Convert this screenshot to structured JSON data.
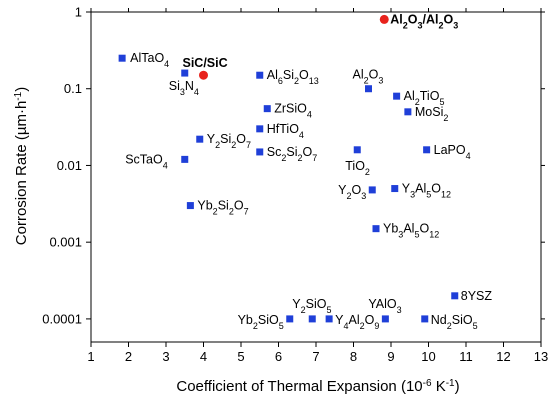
{
  "chart_data": {
    "type": "scatter",
    "xlabel": "Coefficient of Thermal Expansion (10^-6 K^-1)",
    "ylabel": "Corrosion Rate (µm·h^-1)",
    "xlim": [
      1,
      13
    ],
    "ylim": [
      5e-05,
      1
    ],
    "y_scale": "log",
    "x_ticks": [
      1,
      2,
      3,
      4,
      5,
      6,
      7,
      8,
      9,
      10,
      11,
      12,
      13
    ],
    "y_ticks": [
      {
        "value": 0.0001,
        "label": "0.0001"
      },
      {
        "value": 0.001,
        "label": "0.001"
      },
      {
        "value": 0.01,
        "label": "0.01"
      },
      {
        "value": 0.1,
        "label": "0.1"
      },
      {
        "value": 1,
        "label": "1"
      }
    ],
    "grid": false,
    "colors": {
      "square_marker": "#1f3fd8",
      "circle_marker": "#e8221c"
    },
    "points": [
      {
        "label": "AlTaO4",
        "html": "AlTaO<tspan baseline-shift='sub' font-size='9'>4</tspan>",
        "x": 1.83,
        "y": 0.25,
        "marker": "square",
        "lx": 8,
        "ly": 4,
        "anchor": "start"
      },
      {
        "label": "Si3N4",
        "html": "Si<tspan baseline-shift='sub' font-size='9'>3</tspan>N<tspan baseline-shift='sub' font-size='9'>4</tspan>",
        "x": 3.5,
        "y": 0.16,
        "marker": "square",
        "lx": -16,
        "ly": 17,
        "anchor": "start"
      },
      {
        "label": "SiC/SiC",
        "html": "SiC/SiC",
        "x": 4.0,
        "y": 0.15,
        "marker": "circle",
        "lx": -21,
        "ly": -8,
        "anchor": "start",
        "bold": true
      },
      {
        "label": "Al2O3/Al2O3",
        "html": "Al<tspan baseline-shift='sub' font-size='9'>2</tspan>O<tspan baseline-shift='sub' font-size='9'>3</tspan>/Al<tspan baseline-shift='sub' font-size='9'>2</tspan>O<tspan baseline-shift='sub' font-size='9'>3</tspan>",
        "x": 8.82,
        "y": 0.8,
        "marker": "circle",
        "lx": 6,
        "ly": 4,
        "anchor": "start",
        "bold": true
      },
      {
        "label": "Al6Si2O13",
        "html": "Al<tspan baseline-shift='sub' font-size='9'>6</tspan>Si<tspan baseline-shift='sub' font-size='9'>2</tspan>O<tspan baseline-shift='sub' font-size='9'>13</tspan>",
        "x": 5.5,
        "y": 0.15,
        "marker": "square",
        "lx": 7,
        "ly": 4,
        "anchor": "start"
      },
      {
        "label": "Al2O3",
        "html": "Al<tspan baseline-shift='sub' font-size='9'>2</tspan>O<tspan baseline-shift='sub' font-size='9'>3</tspan>",
        "x": 8.4,
        "y": 0.1,
        "marker": "square",
        "lx": -16,
        "ly": -10,
        "anchor": "start"
      },
      {
        "label": "Al2TiO5",
        "html": "Al<tspan baseline-shift='sub' font-size='9'>2</tspan>TiO<tspan baseline-shift='sub' font-size='9'>5</tspan>",
        "x": 9.15,
        "y": 0.08,
        "marker": "square",
        "lx": 7,
        "ly": 4,
        "anchor": "start"
      },
      {
        "label": "ZrSiO4",
        "html": "ZrSiO<tspan baseline-shift='sub' font-size='9'>4</tspan>",
        "x": 5.7,
        "y": 0.055,
        "marker": "square",
        "lx": 7,
        "ly": 4,
        "anchor": "start"
      },
      {
        "label": "MoSi2",
        "html": "MoSi<tspan baseline-shift='sub' font-size='9'>2</tspan>",
        "x": 9.45,
        "y": 0.05,
        "marker": "square",
        "lx": 7,
        "ly": 4,
        "anchor": "start"
      },
      {
        "label": "HfTiO4",
        "html": "HfTiO<tspan baseline-shift='sub' font-size='9'>4</tspan>",
        "x": 5.5,
        "y": 0.03,
        "marker": "square",
        "lx": 7,
        "ly": 4,
        "anchor": "start"
      },
      {
        "label": "Y2Si2O7",
        "html": "Y<tspan baseline-shift='sub' font-size='9'>2</tspan>Si<tspan baseline-shift='sub' font-size='9'>2</tspan>O<tspan baseline-shift='sub' font-size='9'>7</tspan>",
        "x": 3.9,
        "y": 0.022,
        "marker": "square",
        "lx": 7,
        "ly": 4,
        "anchor": "start"
      },
      {
        "label": "Sc2Si2O7",
        "html": "Sc<tspan baseline-shift='sub' font-size='9'>2</tspan>Si<tspan baseline-shift='sub' font-size='9'>2</tspan>O<tspan baseline-shift='sub' font-size='9'>7</tspan>",
        "x": 5.5,
        "y": 0.015,
        "marker": "square",
        "lx": 7,
        "ly": 4,
        "anchor": "start"
      },
      {
        "label": "TiO2",
        "html": "TiO<tspan baseline-shift='sub' font-size='9'>2</tspan>",
        "x": 8.1,
        "y": 0.016,
        "marker": "square",
        "lx": -12,
        "ly": 20,
        "anchor": "start"
      },
      {
        "label": "LaPO4",
        "html": "LaPO<tspan baseline-shift='sub' font-size='9'>4</tspan>",
        "x": 9.95,
        "y": 0.016,
        "marker": "square",
        "lx": 7,
        "ly": 4,
        "anchor": "start"
      },
      {
        "label": "ScTaO4",
        "html": "ScTaO<tspan baseline-shift='sub' font-size='9'>4</tspan>",
        "x": 3.5,
        "y": 0.012,
        "marker": "square",
        "lx": -17,
        "ly": 4,
        "anchor": "end"
      },
      {
        "label": "Y2O3",
        "html": "Y<tspan baseline-shift='sub' font-size='9'>2</tspan>O<tspan baseline-shift='sub' font-size='9'>3</tspan>",
        "x": 8.5,
        "y": 0.0048,
        "marker": "square",
        "lx": -6,
        "ly": 4,
        "anchor": "end"
      },
      {
        "label": "Y3Al5O12",
        "html": "Y<tspan baseline-shift='sub' font-size='9'>3</tspan>Al<tspan baseline-shift='sub' font-size='9'>5</tspan>O<tspan baseline-shift='sub' font-size='9'>12</tspan>",
        "x": 9.1,
        "y": 0.005,
        "marker": "square",
        "lx": 7,
        "ly": 4,
        "anchor": "start"
      },
      {
        "label": "Yb2Si2O7",
        "html": "Yb<tspan baseline-shift='sub' font-size='9'>2</tspan>Si<tspan baseline-shift='sub' font-size='9'>2</tspan>O<tspan baseline-shift='sub' font-size='9'>7</tspan>",
        "x": 3.65,
        "y": 0.003,
        "marker": "square",
        "lx": 7,
        "ly": 4,
        "anchor": "start"
      },
      {
        "label": "Yb3Al5O12",
        "html": "Yb<tspan baseline-shift='sub' font-size='9'>3</tspan>Al<tspan baseline-shift='sub' font-size='9'>5</tspan>O<tspan baseline-shift='sub' font-size='9'>12</tspan>",
        "x": 8.6,
        "y": 0.0015,
        "marker": "square",
        "lx": 7,
        "ly": 4,
        "anchor": "start"
      },
      {
        "label": "8YSZ",
        "html": "8YSZ",
        "x": 10.7,
        "y": 0.0002,
        "marker": "square",
        "lx": 6,
        "ly": 4,
        "anchor": "start"
      },
      {
        "label": "Yb2SiO5",
        "html": "Yb<tspan baseline-shift='sub' font-size='9'>2</tspan>SiO<tspan baseline-shift='sub' font-size='9'>5</tspan>",
        "x": 6.3,
        "y": 0.0001,
        "marker": "square",
        "lx": -6,
        "ly": 5,
        "anchor": "end"
      },
      {
        "label": "Y2SiO5",
        "html": "Y<tspan baseline-shift='sub' font-size='9'>2</tspan>SiO<tspan baseline-shift='sub' font-size='9'>5</tspan>",
        "x": 6.9,
        "y": 0.0001,
        "marker": "square",
        "lx": -20,
        "ly": -11,
        "anchor": "start"
      },
      {
        "label": "Y4Al2O9",
        "html": "Y<tspan baseline-shift='sub' font-size='9'>4</tspan>Al<tspan baseline-shift='sub' font-size='9'>2</tspan>O<tspan baseline-shift='sub' font-size='9'>9</tspan>",
        "x": 7.35,
        "y": 0.0001,
        "marker": "square",
        "lx": 6,
        "ly": 5,
        "anchor": "start"
      },
      {
        "label": "YAlO3",
        "html": "YAlO<tspan baseline-shift='sub' font-size='9'>3</tspan>",
        "x": 8.85,
        "y": 0.0001,
        "marker": "square",
        "lx": -17,
        "ly": -11,
        "anchor": "start"
      },
      {
        "label": "Nd2SiO5",
        "html": "Nd<tspan baseline-shift='sub' font-size='9'>2</tspan>SiO<tspan baseline-shift='sub' font-size='9'>5</tspan>",
        "x": 9.9,
        "y": 0.0001,
        "marker": "square",
        "lx": 6,
        "ly": 5,
        "anchor": "start"
      }
    ]
  }
}
